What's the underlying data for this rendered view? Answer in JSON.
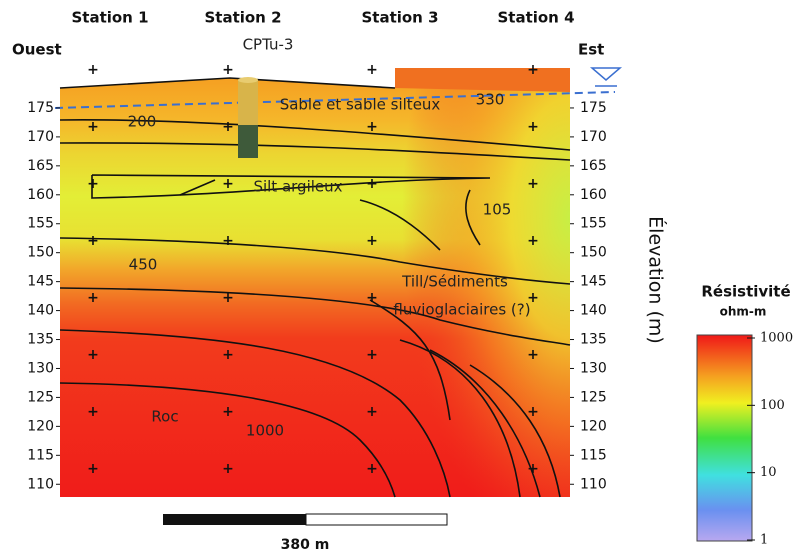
{
  "chart_data": {
    "type": "resistivity-section",
    "stations": [
      "Station 1",
      "Station 2",
      "Station 3",
      "Station 4"
    ],
    "west_label": "Ouest",
    "east_label": "Est",
    "borehole_label": "CPTu-3",
    "y_label": "Élevation (m)",
    "ylim": [
      107.8,
      181.9
    ],
    "yticks": [
      110,
      115,
      120,
      125,
      130,
      135,
      140,
      145,
      150,
      155,
      160,
      165,
      170,
      175
    ],
    "annotations": [
      "Sable et sable silteux",
      "Silt argileux",
      "Till/Sédiments",
      "fluvioglaciaires (?)",
      "Roc"
    ],
    "contour_labels": [
      200,
      330,
      105,
      450,
      1000
    ],
    "colorbar": {
      "title": "Résistivité",
      "unit": "ohm-m",
      "log_scale": true,
      "lim": [
        1,
        1000
      ],
      "ticks": [
        1,
        10,
        100,
        1000
      ]
    },
    "scale_bar_label": "380 m"
  }
}
